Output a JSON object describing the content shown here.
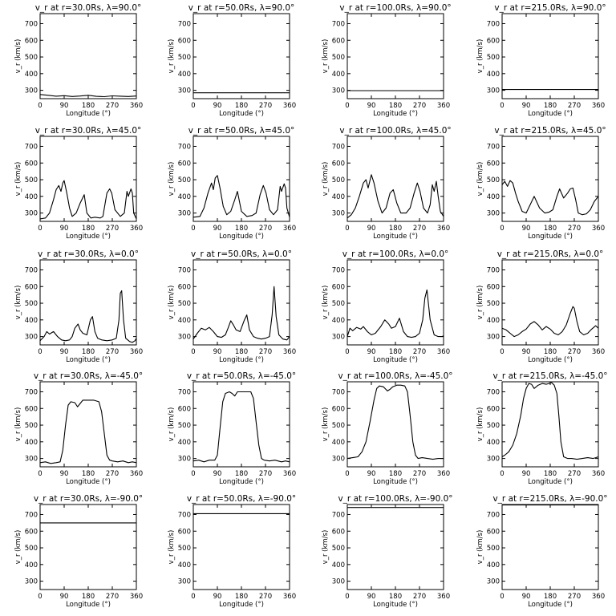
{
  "chart_data": [
    {
      "type": "line",
      "row": 0,
      "col": 0,
      "title": "v_r at r=30.0Rs, λ=90.0°",
      "xlabel": "Longitude (°)",
      "ylabel": "v_r (km/s)",
      "xlim": [
        0,
        360
      ],
      "ylim": [
        250,
        760
      ],
      "xticks": [
        "0",
        "90",
        "180",
        "270",
        "360"
      ],
      "yticks": [
        "300",
        "400",
        "500",
        "600",
        "700"
      ],
      "x": [
        0,
        30,
        60,
        90,
        120,
        150,
        180,
        210,
        240,
        270,
        300,
        330,
        360
      ],
      "y": [
        275,
        270,
        265,
        268,
        263,
        266,
        270,
        264,
        262,
        267,
        265,
        263,
        266
      ]
    },
    {
      "type": "line",
      "row": 0,
      "col": 1,
      "title": "v_r at r=50.0Rs, λ=90.0°",
      "xlabel": "Longitude (°)",
      "ylabel": "v_r (km/s)",
      "xlim": [
        0,
        360
      ],
      "ylim": [
        250,
        760
      ],
      "xticks": [
        "0",
        "90",
        "180",
        "270",
        "360"
      ],
      "yticks": [
        "300",
        "400",
        "500",
        "600",
        "700"
      ],
      "x": [
        0,
        360
      ],
      "y": [
        285,
        285
      ]
    },
    {
      "type": "line",
      "row": 0,
      "col": 2,
      "title": "v_r at r=100.0Rs, λ=90.0°",
      "xlabel": "Longitude (°)",
      "ylabel": "v_r (km/s)",
      "xlim": [
        0,
        360
      ],
      "ylim": [
        250,
        760
      ],
      "xticks": [
        "0",
        "90",
        "180",
        "270",
        "360"
      ],
      "yticks": [
        "300",
        "400",
        "500",
        "600",
        "700"
      ],
      "x": [
        0,
        360
      ],
      "y": [
        298,
        298
      ]
    },
    {
      "type": "line",
      "row": 0,
      "col": 3,
      "title": "v_r at r=215.0Rs, λ=90.0°",
      "xlabel": "Longitude (°)",
      "ylabel": "v_r (km/s)",
      "xlim": [
        0,
        360
      ],
      "ylim": [
        250,
        760
      ],
      "xticks": [
        "0",
        "90",
        "180",
        "270",
        "360"
      ],
      "yticks": [
        "300",
        "400",
        "500",
        "600",
        "700"
      ],
      "x": [
        0,
        360
      ],
      "y": [
        305,
        305
      ]
    },
    {
      "type": "line",
      "row": 1,
      "col": 0,
      "title": "v_r at r=30.0Rs, λ=45.0°",
      "xlabel": "Longitude (°)",
      "ylabel": "v_r (km/s)",
      "xlim": [
        0,
        360
      ],
      "ylim": [
        250,
        760
      ],
      "xticks": [
        "0",
        "90",
        "180",
        "270",
        "360"
      ],
      "yticks": [
        "300",
        "400",
        "500",
        "600",
        "700"
      ],
      "x": [
        0,
        20,
        35,
        50,
        60,
        70,
        78,
        85,
        90,
        100,
        110,
        120,
        135,
        150,
        165,
        175,
        190,
        205,
        225,
        235,
        250,
        260,
        268,
        280,
        300,
        315,
        325,
        330,
        340,
        345,
        350,
        360
      ],
      "y": [
        265,
        270,
        300,
        380,
        440,
        465,
        430,
        480,
        495,
        420,
        330,
        280,
        300,
        360,
        410,
        300,
        270,
        275,
        270,
        280,
        420,
        445,
        420,
        320,
        280,
        300,
        430,
        400,
        445,
        420,
        300,
        265
      ]
    },
    {
      "type": "line",
      "row": 1,
      "col": 1,
      "title": "v_r at r=50.0Rs, λ=45.0°",
      "xlabel": "Longitude (°)",
      "ylabel": "v_r (km/s)",
      "xlim": [
        0,
        360
      ],
      "ylim": [
        250,
        760
      ],
      "xticks": [
        "0",
        "90",
        "180",
        "270",
        "360"
      ],
      "yticks": [
        "300",
        "400",
        "500",
        "600",
        "700"
      ],
      "x": [
        0,
        25,
        40,
        55,
        68,
        75,
        82,
        90,
        100,
        112,
        125,
        140,
        155,
        165,
        180,
        200,
        220,
        235,
        250,
        262,
        272,
        285,
        300,
        315,
        325,
        330,
        340,
        345,
        350,
        360
      ],
      "y": [
        275,
        280,
        330,
        420,
        480,
        440,
        510,
        525,
        450,
        340,
        290,
        310,
        380,
        430,
        310,
        280,
        285,
        300,
        410,
        465,
        420,
        320,
        290,
        320,
        460,
        430,
        475,
        450,
        330,
        275
      ]
    },
    {
      "type": "line",
      "row": 1,
      "col": 2,
      "title": "v_r at r=100.0Rs, λ=45.0°",
      "xlabel": "Longitude (°)",
      "ylabel": "v_r (km/s)",
      "xlim": [
        0,
        360
      ],
      "ylim": [
        250,
        760
      ],
      "xticks": [
        "0",
        "90",
        "180",
        "270",
        "360"
      ],
      "yticks": [
        "300",
        "400",
        "500",
        "600",
        "700"
      ],
      "x": [
        0,
        15,
        30,
        45,
        60,
        70,
        78,
        90,
        100,
        115,
        130,
        145,
        160,
        172,
        185,
        200,
        220,
        235,
        250,
        262,
        272,
        285,
        300,
        310,
        318,
        325,
        333,
        340,
        348,
        360
      ],
      "y": [
        270,
        290,
        330,
        400,
        480,
        500,
        450,
        530,
        480,
        370,
        300,
        330,
        420,
        440,
        360,
        300,
        300,
        330,
        420,
        480,
        430,
        330,
        300,
        350,
        470,
        430,
        490,
        400,
        310,
        280
      ]
    },
    {
      "type": "line",
      "row": 1,
      "col": 3,
      "title": "v_r at r=215.0Rs, λ=45.0°",
      "xlabel": "Longitude (°)",
      "ylabel": "v_r (km/s)",
      "xlim": [
        0,
        360
      ],
      "ylim": [
        250,
        760
      ],
      "xticks": [
        "0",
        "90",
        "180",
        "270",
        "360"
      ],
      "yticks": [
        "300",
        "400",
        "500",
        "600",
        "700"
      ],
      "x": [
        0,
        10,
        20,
        30,
        40,
        50,
        60,
        75,
        90,
        105,
        120,
        140,
        160,
        175,
        190,
        205,
        215,
        230,
        245,
        255,
        265,
        275,
        285,
        300,
        315,
        330,
        345,
        360
      ],
      "y": [
        470,
        490,
        460,
        495,
        480,
        420,
        370,
        310,
        300,
        350,
        400,
        330,
        300,
        305,
        320,
        400,
        445,
        390,
        420,
        445,
        450,
        380,
        300,
        290,
        295,
        320,
        370,
        400
      ]
    },
    {
      "type": "line",
      "row": 2,
      "col": 0,
      "title": "v_r at r=30.0Rs, λ=0.0°",
      "xlabel": "Longitude (°)",
      "ylabel": "v_r (km/s)",
      "xlim": [
        0,
        360
      ],
      "ylim": [
        250,
        760
      ],
      "xticks": [
        "0",
        "90",
        "180",
        "270",
        "360"
      ],
      "yticks": [
        "300",
        "400",
        "500",
        "600",
        "700"
      ],
      "x": [
        0,
        15,
        25,
        35,
        50,
        65,
        80,
        95,
        110,
        120,
        130,
        142,
        150,
        160,
        175,
        188,
        196,
        205,
        215,
        230,
        250,
        270,
        285,
        295,
        300,
        305,
        312,
        320,
        335,
        345,
        355,
        360
      ],
      "y": [
        275,
        300,
        330,
        315,
        330,
        300,
        280,
        275,
        280,
        300,
        350,
        375,
        340,
        320,
        310,
        400,
        420,
        330,
        290,
        280,
        275,
        280,
        290,
        400,
        560,
        575,
        400,
        290,
        270,
        265,
        275,
        290
      ]
    },
    {
      "type": "line",
      "row": 2,
      "col": 1,
      "title": "v_r at r=50.0Rs, λ=0.0°",
      "xlabel": "Longitude (°)",
      "ylabel": "v_r (km/s)",
      "xlim": [
        0,
        360
      ],
      "ylim": [
        250,
        760
      ],
      "xticks": [
        "0",
        "90",
        "180",
        "270",
        "360"
      ],
      "yticks": [
        "300",
        "400",
        "500",
        "600",
        "700"
      ],
      "x": [
        0,
        15,
        30,
        45,
        60,
        75,
        90,
        105,
        120,
        130,
        140,
        150,
        160,
        175,
        190,
        200,
        210,
        225,
        240,
        255,
        270,
        285,
        295,
        302,
        310,
        320,
        335,
        350,
        360
      ],
      "y": [
        285,
        320,
        350,
        340,
        355,
        330,
        300,
        295,
        310,
        350,
        395,
        370,
        340,
        330,
        395,
        430,
        340,
        300,
        290,
        285,
        290,
        300,
        430,
        600,
        420,
        310,
        285,
        280,
        300
      ]
    },
    {
      "type": "line",
      "row": 2,
      "col": 2,
      "title": "v_r at r=100.0Rs, λ=0.0°",
      "xlabel": "Longitude (°)",
      "ylabel": "v_r (km/s)",
      "xlim": [
        0,
        360
      ],
      "ylim": [
        250,
        760
      ],
      "xticks": [
        "0",
        "90",
        "180",
        "270",
        "360"
      ],
      "yticks": [
        "300",
        "400",
        "500",
        "600",
        "700"
      ],
      "x": [
        0,
        10,
        20,
        35,
        50,
        60,
        75,
        90,
        105,
        125,
        140,
        155,
        165,
        180,
        195,
        210,
        225,
        240,
        255,
        270,
        282,
        290,
        298,
        310,
        325,
        340,
        355,
        360
      ],
      "y": [
        300,
        350,
        335,
        355,
        345,
        360,
        330,
        310,
        320,
        360,
        400,
        375,
        350,
        360,
        410,
        330,
        300,
        295,
        300,
        320,
        400,
        530,
        580,
        400,
        310,
        300,
        300,
        305
      ]
    },
    {
      "type": "line",
      "row": 2,
      "col": 3,
      "title": "v_r at r=215.0Rs, λ=0.0°",
      "xlabel": "Longitude (°)",
      "ylabel": "v_r (km/s)",
      "xlim": [
        0,
        360
      ],
      "ylim": [
        250,
        760
      ],
      "xticks": [
        "0",
        "90",
        "180",
        "270",
        "360"
      ],
      "yticks": [
        "300",
        "400",
        "500",
        "600",
        "700"
      ],
      "x": [
        0,
        15,
        30,
        45,
        60,
        75,
        90,
        105,
        120,
        135,
        150,
        165,
        180,
        195,
        210,
        225,
        240,
        255,
        265,
        270,
        280,
        290,
        305,
        320,
        335,
        350,
        360
      ],
      "y": [
        350,
        340,
        320,
        300,
        310,
        330,
        345,
        375,
        390,
        370,
        340,
        360,
        345,
        320,
        310,
        330,
        370,
        440,
        480,
        470,
        390,
        330,
        310,
        320,
        345,
        365,
        350
      ]
    },
    {
      "type": "line",
      "row": 3,
      "col": 0,
      "title": "v_r at r=30.0Rs, λ=-45.0°",
      "xlabel": "Longitude (°)",
      "ylabel": "v_r (km/s)",
      "xlim": [
        0,
        360
      ],
      "ylim": [
        250,
        760
      ],
      "xticks": [
        "0",
        "90",
        "180",
        "270",
        "360"
      ],
      "yticks": [
        "300",
        "400",
        "500",
        "600",
        "700"
      ],
      "x": [
        0,
        20,
        40,
        60,
        75,
        85,
        95,
        105,
        115,
        130,
        140,
        150,
        160,
        180,
        200,
        220,
        230,
        240,
        250,
        260,
        270,
        290,
        310,
        330,
        345,
        360
      ],
      "y": [
        275,
        280,
        270,
        275,
        280,
        350,
        500,
        620,
        640,
        635,
        610,
        630,
        650,
        650,
        650,
        640,
        580,
        450,
        320,
        290,
        285,
        280,
        285,
        275,
        280,
        275
      ]
    },
    {
      "type": "line",
      "row": 3,
      "col": 1,
      "title": "v_r at r=50.0Rs, λ=-45.0°",
      "xlabel": "Longitude (°)",
      "ylabel": "v_r (km/s)",
      "xlim": [
        0,
        360
      ],
      "ylim": [
        250,
        760
      ],
      "xticks": [
        "0",
        "90",
        "180",
        "270",
        "360"
      ],
      "yticks": [
        "300",
        "400",
        "500",
        "600",
        "700"
      ],
      "x": [
        0,
        20,
        40,
        60,
        80,
        90,
        100,
        110,
        120,
        135,
        145,
        155,
        165,
        180,
        200,
        215,
        225,
        235,
        245,
        255,
        265,
        285,
        305,
        330,
        345,
        360
      ],
      "y": [
        285,
        290,
        280,
        290,
        290,
        320,
        480,
        640,
        690,
        700,
        690,
        675,
        700,
        700,
        700,
        700,
        660,
        520,
        380,
        300,
        290,
        285,
        290,
        280,
        285,
        280
      ]
    },
    {
      "type": "line",
      "row": 3,
      "col": 2,
      "title": "v_r at r=100.0Rs, λ=-45.0°",
      "xlabel": "Longitude (°)",
      "ylabel": "v_r (km/s)",
      "xlim": [
        0,
        360
      ],
      "ylim": [
        250,
        760
      ],
      "xticks": [
        "0",
        "90",
        "180",
        "270",
        "360"
      ],
      "yticks": [
        "300",
        "400",
        "500",
        "600",
        "700"
      ],
      "x": [
        0,
        20,
        40,
        55,
        70,
        85,
        100,
        110,
        120,
        135,
        150,
        160,
        170,
        185,
        200,
        215,
        225,
        235,
        245,
        255,
        265,
        280,
        300,
        320,
        340,
        360
      ],
      "y": [
        300,
        305,
        310,
        340,
        400,
        520,
        650,
        720,
        735,
        730,
        705,
        715,
        730,
        740,
        740,
        735,
        700,
        560,
        400,
        320,
        300,
        305,
        300,
        295,
        300,
        300
      ]
    },
    {
      "type": "line",
      "row": 3,
      "col": 3,
      "title": "v_r at r=215.0Rs, λ=-45.0°",
      "xlabel": "Longitude (°)",
      "ylabel": "v_r (km/s)",
      "xlim": [
        0,
        360
      ],
      "ylim": [
        250,
        760
      ],
      "xticks": [
        "0",
        "90",
        "180",
        "270",
        "360"
      ],
      "yticks": [
        "300",
        "400",
        "500",
        "600",
        "700"
      ],
      "x": [
        0,
        10,
        25,
        40,
        55,
        70,
        80,
        90,
        100,
        110,
        120,
        135,
        150,
        165,
        175,
        185,
        195,
        205,
        212,
        220,
        230,
        245,
        260,
        280,
        300,
        320,
        340,
        350,
        360
      ],
      "y": [
        310,
        320,
        340,
        380,
        450,
        560,
        660,
        720,
        750,
        745,
        720,
        740,
        750,
        745,
        750,
        755,
        740,
        690,
        560,
        400,
        310,
        300,
        300,
        295,
        300,
        305,
        300,
        305,
        310
      ]
    },
    {
      "type": "line",
      "row": 4,
      "col": 0,
      "title": "v_r at r=30.0Rs, λ=-90.0°",
      "xlabel": "Longitude (°)",
      "ylabel": "v_r (km/s)",
      "xlim": [
        0,
        360
      ],
      "ylim": [
        250,
        760
      ],
      "xticks": [
        "0",
        "90",
        "180",
        "270",
        "360"
      ],
      "yticks": [
        "300",
        "400",
        "500",
        "600",
        "700"
      ],
      "x": [
        0,
        360
      ],
      "y": [
        650,
        650
      ]
    },
    {
      "type": "line",
      "row": 4,
      "col": 1,
      "title": "v_r at r=50.0Rs, λ=-90.0°",
      "xlabel": "Longitude (°)",
      "ylabel": "v_r (km/s)",
      "xlim": [
        0,
        360
      ],
      "ylim": [
        250,
        760
      ],
      "xticks": [
        "0",
        "90",
        "180",
        "270",
        "360"
      ],
      "yticks": [
        "300",
        "400",
        "500",
        "600",
        "700"
      ],
      "x": [
        0,
        360
      ],
      "y": [
        705,
        705
      ]
    },
    {
      "type": "line",
      "row": 4,
      "col": 2,
      "title": "v_r at r=100.0Rs, λ=-90.0°",
      "xlabel": "Longitude (°)",
      "ylabel": "v_r (km/s)",
      "xlim": [
        0,
        360
      ],
      "ylim": [
        250,
        760
      ],
      "xticks": [
        "0",
        "90",
        "180",
        "270",
        "360"
      ],
      "yticks": [
        "300",
        "400",
        "500",
        "600",
        "700"
      ],
      "x": [
        0,
        360
      ],
      "y": [
        742,
        742
      ]
    },
    {
      "type": "line",
      "row": 4,
      "col": 3,
      "title": "v_r at r=215.0Rs, λ=-90.0°",
      "xlabel": "Longitude (°)",
      "ylabel": "v_r (km/s)",
      "xlim": [
        0,
        360
      ],
      "ylim": [
        250,
        760
      ],
      "xticks": [
        "0",
        "90",
        "180",
        "270",
        "360"
      ],
      "yticks": [
        "300",
        "400",
        "500",
        "600",
        "700"
      ],
      "x": [
        0,
        360
      ],
      "y": [
        757,
        757
      ]
    }
  ]
}
